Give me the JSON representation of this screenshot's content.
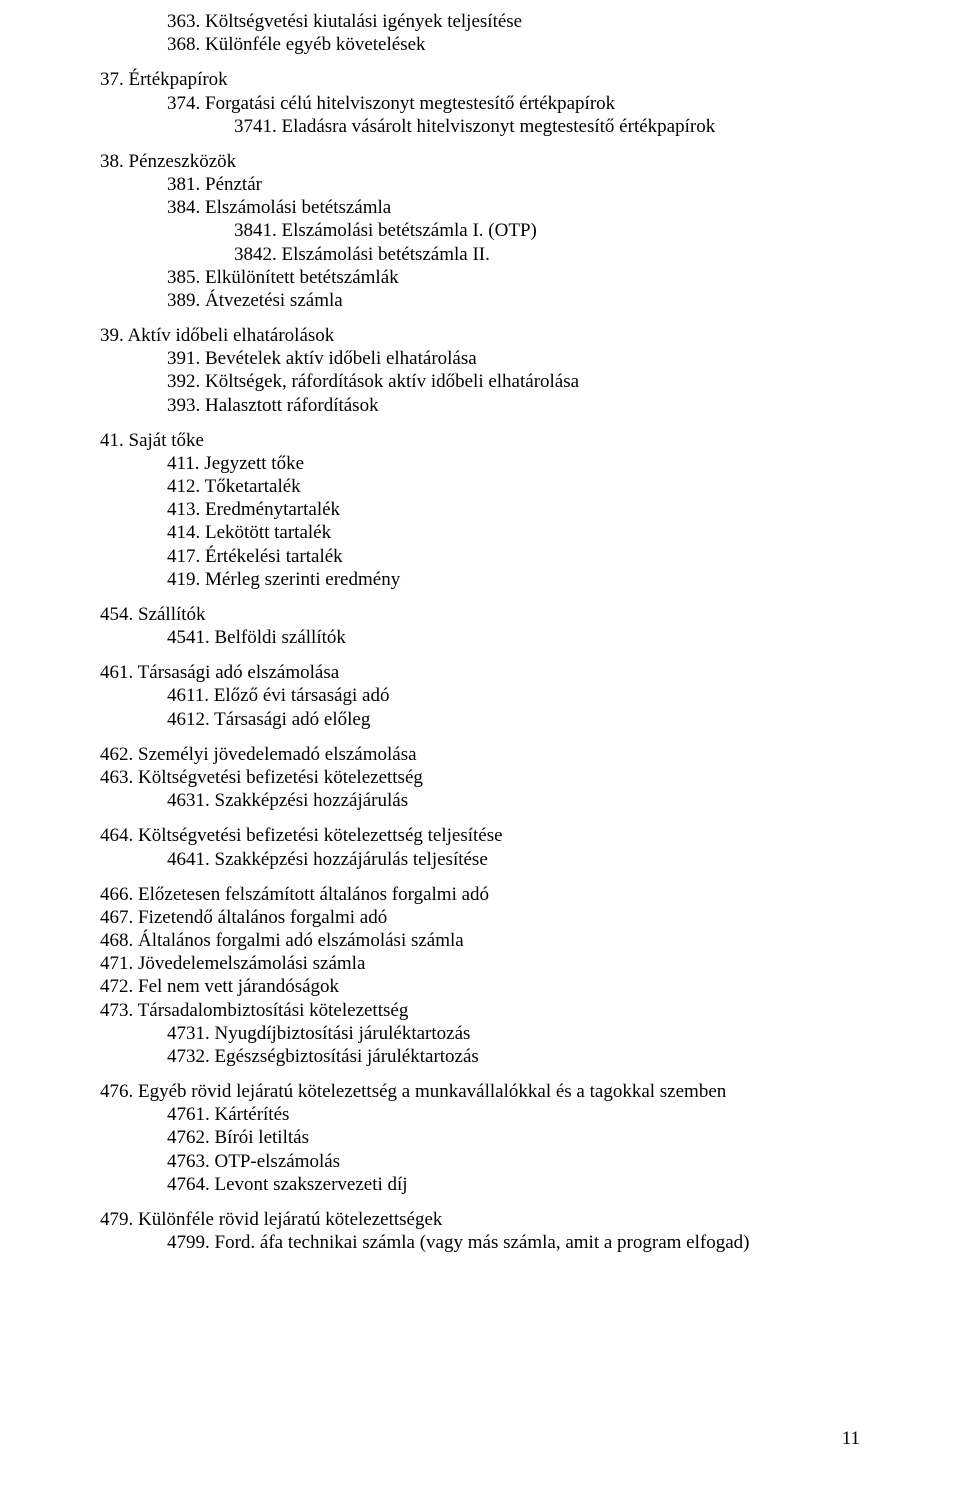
{
  "page_number": "11",
  "typography": {
    "font_family": "Times New Roman",
    "body_fontsize_pt": 14,
    "text_color": "#000000",
    "background_color": "#ffffff"
  },
  "blocks": [
    {
      "lines": [
        {
          "level": 2,
          "text": "363. Költségvetési kiutalási igények teljesítése"
        },
        {
          "level": 2,
          "text": "368. Különféle egyéb követelések"
        }
      ]
    },
    {
      "lines": [
        {
          "level": 1,
          "text": "37. Értékpapírok"
        },
        {
          "level": 2,
          "text": "374. Forgatási célú hitelviszonyt megtestesítő értékpapírok"
        },
        {
          "level": 3,
          "text": "3741. Eladásra vásárolt hitelviszonyt megtestesítő értékpapírok"
        }
      ]
    },
    {
      "lines": [
        {
          "level": 1,
          "text": "38. Pénzeszközök"
        },
        {
          "level": 2,
          "text": "381. Pénztár"
        },
        {
          "level": 2,
          "text": "384. Elszámolási betétszámla"
        },
        {
          "level": 3,
          "text": "3841. Elszámolási betétszámla I. (OTP)"
        },
        {
          "level": 3,
          "text": "3842. Elszámolási betétszámla II."
        },
        {
          "level": 2,
          "text": "385. Elkülönített betétszámlák"
        },
        {
          "level": 2,
          "text": "389. Átvezetési számla"
        }
      ]
    },
    {
      "lines": [
        {
          "level": 1,
          "text": "39. Aktív időbeli elhatárolások"
        },
        {
          "level": 2,
          "text": "391. Bevételek aktív időbeli elhatárolása"
        },
        {
          "level": 2,
          "text": "392. Költségek, ráfordítások aktív időbeli elhatárolása"
        },
        {
          "level": 2,
          "text": "393. Halasztott ráfordítások"
        }
      ]
    },
    {
      "lines": [
        {
          "level": 1,
          "text": "41. Saját tőke"
        },
        {
          "level": 2,
          "text": "411. Jegyzett tőke"
        },
        {
          "level": 2,
          "text": "412. Tőketartalék"
        },
        {
          "level": 2,
          "text": "413. Eredménytartalék"
        },
        {
          "level": 2,
          "text": "414. Lekötött tartalék"
        },
        {
          "level": 2,
          "text": "417. Értékelési tartalék"
        },
        {
          "level": 2,
          "text": "419. Mérleg szerinti eredmény"
        }
      ]
    },
    {
      "lines": [
        {
          "level": 1,
          "text": "454. Szállítók"
        },
        {
          "level": 2,
          "text": "4541. Belföldi szállítók"
        }
      ]
    },
    {
      "lines": [
        {
          "level": 1,
          "text": "461. Társasági adó elszámolása"
        },
        {
          "level": 2,
          "text": "4611. Előző évi társasági adó"
        },
        {
          "level": 2,
          "text": "4612. Társasági adó előleg"
        }
      ]
    },
    {
      "lines": [
        {
          "level": 1,
          "text": "462. Személyi jövedelemadó elszámolása"
        },
        {
          "level": 1,
          "text": "463. Költségvetési befizetési kötelezettség"
        },
        {
          "level": 2,
          "text": "4631. Szakképzési hozzájárulás"
        }
      ]
    },
    {
      "lines": [
        {
          "level": 1,
          "text": "464. Költségvetési befizetési kötelezettség teljesítése"
        },
        {
          "level": 2,
          "text": "4641. Szakképzési hozzájárulás teljesítése"
        }
      ]
    },
    {
      "lines": [
        {
          "level": 1,
          "text": "466. Előzetesen felszámított általános forgalmi adó"
        },
        {
          "level": 1,
          "text": "467. Fizetendő általános forgalmi adó"
        },
        {
          "level": 1,
          "text": "468. Általános forgalmi adó elszámolási számla"
        },
        {
          "level": 1,
          "text": "471. Jövedelemelszámolási számla"
        },
        {
          "level": 1,
          "text": "472. Fel nem vett járandóságok"
        },
        {
          "level": 1,
          "text": "473. Társadalombiztosítási kötelezettség"
        },
        {
          "level": 2,
          "text": "4731. Nyugdíjbiztosítási járuléktartozás"
        },
        {
          "level": 2,
          "text": "4732. Egészségbiztosítási járuléktartozás"
        }
      ]
    },
    {
      "lines": [
        {
          "level": 1,
          "text": "476. Egyéb rövid lejáratú kötelezettség a munkavállalókkal és a tagokkal szemben"
        },
        {
          "level": 2,
          "text": "4761. Kártérítés"
        },
        {
          "level": 2,
          "text": "4762. Bírói letiltás"
        },
        {
          "level": 2,
          "text": "4763. OTP-elszámolás"
        },
        {
          "level": 2,
          "text": "4764. Levont szakszervezeti díj"
        }
      ]
    },
    {
      "lines": [
        {
          "level": 1,
          "text": "479. Különféle rövid lejáratú kötelezettségek"
        },
        {
          "level": 2,
          "text": "4799. Ford. áfa technikai számla (vagy más számla, amit a program elfogad)"
        }
      ]
    }
  ]
}
